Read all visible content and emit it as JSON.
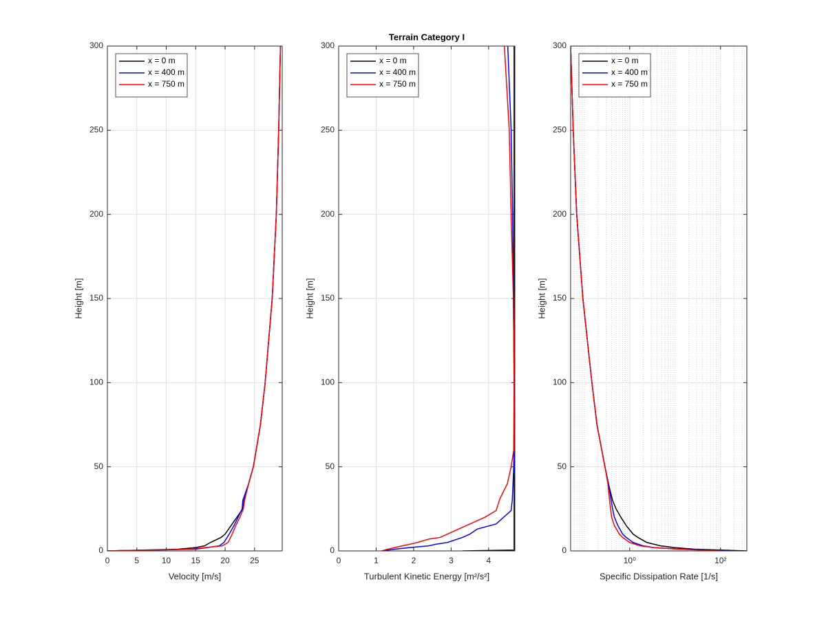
{
  "chart_data": [
    {
      "type": "line",
      "xlabel": "Velocity [m/s]",
      "ylabel": "Height [m]",
      "xlim": [
        0,
        29.7
      ],
      "ylim": [
        0,
        300
      ],
      "xticks": [
        0,
        5,
        10,
        15,
        20,
        25
      ],
      "yticks": [
        0,
        50,
        100,
        150,
        200,
        250,
        300
      ],
      "grid": true,
      "legend": "upper left",
      "series": [
        {
          "name": "x = 0 m",
          "color": "#000000",
          "x": [
            0,
            12,
            15,
            16.5,
            17.5,
            19.3,
            20,
            21,
            22,
            23,
            23.2,
            24,
            24.8,
            26,
            26.8,
            28,
            28.7,
            29.1,
            29.4
          ],
          "y": [
            0,
            1,
            2,
            3,
            5,
            8,
            10,
            15,
            20,
            25,
            30,
            40,
            50,
            75,
            100,
            150,
            200,
            250,
            300
          ]
        },
        {
          "name": "x = 400 m",
          "color": "#0000ff",
          "x": [
            0,
            15,
            19,
            19.8,
            20.7,
            21.5,
            22.2,
            22.9,
            23,
            24,
            24.8,
            26,
            26.8,
            28,
            28.7,
            29.1,
            29.4
          ],
          "y": [
            0,
            1,
            3,
            5,
            10,
            15,
            20,
            25,
            30,
            40,
            50,
            75,
            100,
            150,
            200,
            250,
            300
          ]
        },
        {
          "name": "x = 750 m",
          "color": "#ff0000",
          "x": [
            0,
            14,
            19.5,
            20.5,
            21.2,
            21.8,
            22.5,
            23.1,
            23.3,
            24,
            24.8,
            26,
            26.8,
            28,
            28.7,
            29.1,
            29.4
          ],
          "y": [
            0,
            1,
            3,
            5,
            10,
            15,
            20,
            25,
            30,
            40,
            50,
            75,
            100,
            150,
            200,
            250,
            300
          ]
        }
      ]
    },
    {
      "type": "line",
      "title": "Terrain Category I",
      "xlabel": "Turbulent Kinetic Energy [m²/s²]",
      "ylabel": "Height [m]",
      "xlim": [
        0,
        4.7
      ],
      "ylim": [
        0,
        300
      ],
      "xticks": [
        0,
        1,
        2,
        3,
        4
      ],
      "yticks": [
        0,
        50,
        100,
        150,
        200,
        250,
        300
      ],
      "grid": true,
      "legend": "upper left",
      "series": [
        {
          "name": "x = 0 m",
          "color": "#000000",
          "x": [
            3.3,
            4.68,
            4.68,
            4.68
          ],
          "y": [
            0,
            0.5,
            100,
            300
          ]
        },
        {
          "name": "x = 400 m",
          "color": "#0000ff",
          "x": [
            1.15,
            1.5,
            1.9,
            2.4,
            2.6,
            2.9,
            3.3,
            3.5,
            3.7,
            4.2,
            4.6,
            4.63,
            4.67,
            4.68,
            4.64,
            4.6,
            4.58,
            4.51
          ],
          "y": [
            0,
            1,
            2,
            3,
            4,
            5,
            8,
            10,
            13,
            16,
            24,
            30,
            50,
            100,
            200,
            250,
            262,
            300
          ]
        },
        {
          "name": "x = 750 m",
          "color": "#ff0000",
          "x": [
            1.15,
            1.3,
            1.5,
            1.7,
            1.9,
            2.1,
            2.4,
            2.7,
            2.9,
            3.1,
            3.4,
            3.6,
            3.9,
            4.2,
            4.3,
            4.5,
            4.6,
            4.67,
            4.68,
            4.66,
            4.6,
            4.55,
            4.42
          ],
          "y": [
            0,
            1,
            2,
            3,
            4,
            5,
            7,
            8,
            10,
            12,
            15,
            17,
            20,
            24,
            31,
            40,
            50,
            60,
            100,
            150,
            200,
            250,
            300
          ]
        }
      ]
    },
    {
      "type": "line",
      "xlabel": "Specific Dissipation Rate [1/s]",
      "ylabel": "Height [m]",
      "xlim": [
        0.05,
        380
      ],
      "ylim": [
        0,
        300
      ],
      "xscale": "log",
      "xticks": [
        {
          "value": 1,
          "label": "10⁰"
        },
        {
          "value": 100,
          "label": "10²"
        }
      ],
      "yticks": [
        0,
        50,
        100,
        150,
        200,
        250,
        300
      ],
      "grid": true,
      "minor_grid": true,
      "legend": "upper left",
      "series": [
        {
          "name": "x = 0 m",
          "color": "#000000",
          "x": [
            380,
            27,
            9.6,
            4.8,
            2.4,
            1.52,
            1.19,
            0.84,
            0.64,
            0.5,
            0.42,
            0.34,
            0.285,
            0.19,
            0.147,
            0.093,
            0.068,
            0.057,
            0.05
          ],
          "y": [
            0,
            1,
            2,
            3,
            5,
            8,
            10,
            15,
            20,
            25,
            30,
            40,
            50,
            75,
            100,
            150,
            200,
            250,
            300
          ]
        },
        {
          "name": "x = 400 m",
          "color": "#0000ff",
          "x": [
            158,
            13.7,
            3.4,
            2,
            1.19,
            0.84,
            0.7,
            0.55,
            0.46,
            0.42,
            0.39,
            0.34,
            0.285,
            0.19,
            0.147,
            0.093,
            0.068,
            0.057,
            0.05
          ],
          "y": [
            0,
            1,
            2,
            3,
            5,
            8,
            10,
            15,
            20,
            25,
            30,
            40,
            50,
            75,
            100,
            150,
            200,
            250,
            300
          ]
        },
        {
          "name": "x = 750 m",
          "color": "#ff0000",
          "x": [
            110,
            11.5,
            3.4,
            1.7,
            1,
            0.7,
            0.59,
            0.46,
            0.4,
            0.38,
            0.36,
            0.33,
            0.285,
            0.19,
            0.147,
            0.093,
            0.068,
            0.057,
            0.05
          ],
          "y": [
            0,
            1,
            2,
            3,
            5,
            8,
            10,
            15,
            20,
            25,
            30,
            40,
            50,
            75,
            100,
            150,
            200,
            250,
            300
          ]
        }
      ]
    }
  ]
}
